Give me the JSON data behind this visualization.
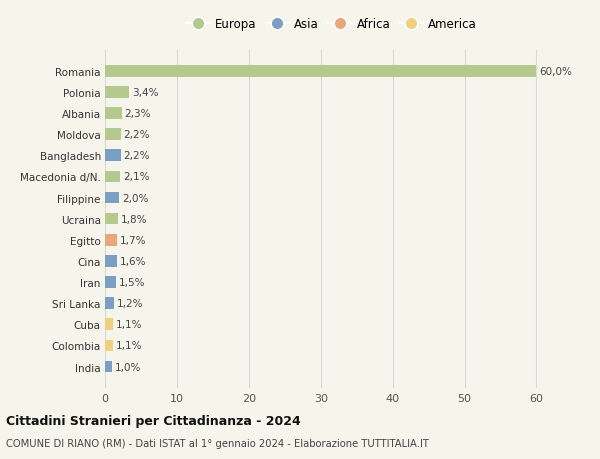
{
  "countries": [
    "Romania",
    "Polonia",
    "Albania",
    "Moldova",
    "Bangladesh",
    "Macedonia d/N.",
    "Filippine",
    "Ucraina",
    "Egitto",
    "Cina",
    "Iran",
    "Sri Lanka",
    "Cuba",
    "Colombia",
    "India"
  ],
  "values": [
    60.0,
    3.4,
    2.3,
    2.2,
    2.2,
    2.1,
    2.0,
    1.8,
    1.7,
    1.6,
    1.5,
    1.2,
    1.1,
    1.1,
    1.0
  ],
  "labels": [
    "60,0%",
    "3,4%",
    "2,3%",
    "2,2%",
    "2,2%",
    "2,1%",
    "2,0%",
    "1,8%",
    "1,7%",
    "1,6%",
    "1,5%",
    "1,2%",
    "1,1%",
    "1,1%",
    "1,0%"
  ],
  "colors": [
    "#b5c98e",
    "#b5c98e",
    "#b5c98e",
    "#b5c98e",
    "#7a9fc2",
    "#b5c98e",
    "#7a9fc2",
    "#b5c98e",
    "#e8a87c",
    "#7a9fc2",
    "#7a9fc2",
    "#7a9fc2",
    "#f0d080",
    "#f0d080",
    "#7a9fc2"
  ],
  "legend": [
    {
      "label": "Europa",
      "color": "#b5c98e"
    },
    {
      "label": "Asia",
      "color": "#7a9fc2"
    },
    {
      "label": "Africa",
      "color": "#e8a87c"
    },
    {
      "label": "America",
      "color": "#f0d080"
    }
  ],
  "title": "Cittadini Stranieri per Cittadinanza - 2024",
  "subtitle": "COMUNE DI RIANO (RM) - Dati ISTAT al 1° gennaio 2024 - Elaborazione TUTTITALIA.IT",
  "xlim": [
    0,
    63
  ],
  "xticks": [
    0,
    10,
    20,
    30,
    40,
    50,
    60
  ],
  "background_color": "#f5f5eb",
  "grid_color": "#d8d8d8",
  "bar_height": 0.55
}
